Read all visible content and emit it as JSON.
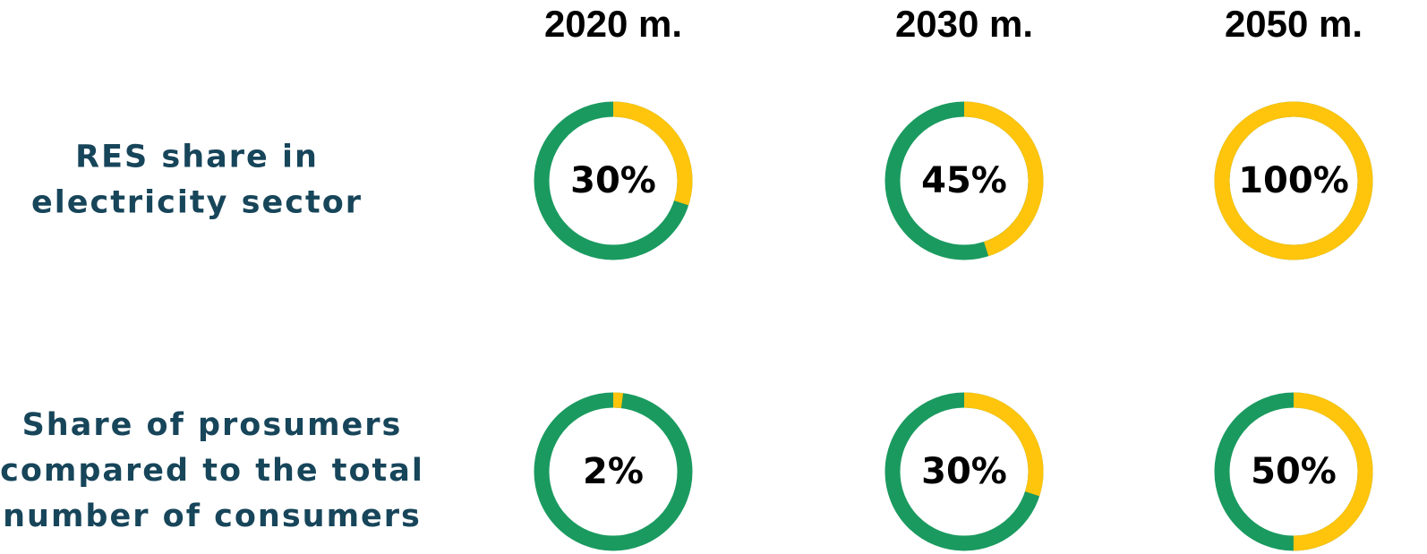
{
  "columns": [
    "2020 m.",
    "2030 m.",
    "2050 m."
  ],
  "rows": [
    {
      "label_lines": [
        "RES share in",
        "electricity sector"
      ],
      "values": [
        30,
        45,
        100
      ],
      "value_labels": [
        "30%",
        "45%",
        "100%"
      ]
    },
    {
      "label_lines": [
        "Share of prosumers",
        "compared to the total",
        "number of consumers"
      ],
      "values": [
        2,
        30,
        50
      ],
      "value_labels": [
        "2%",
        "30%",
        "50%"
      ]
    }
  ],
  "colors": {
    "share": "#FFC40C",
    "rest": "#1A9A5F"
  }
}
